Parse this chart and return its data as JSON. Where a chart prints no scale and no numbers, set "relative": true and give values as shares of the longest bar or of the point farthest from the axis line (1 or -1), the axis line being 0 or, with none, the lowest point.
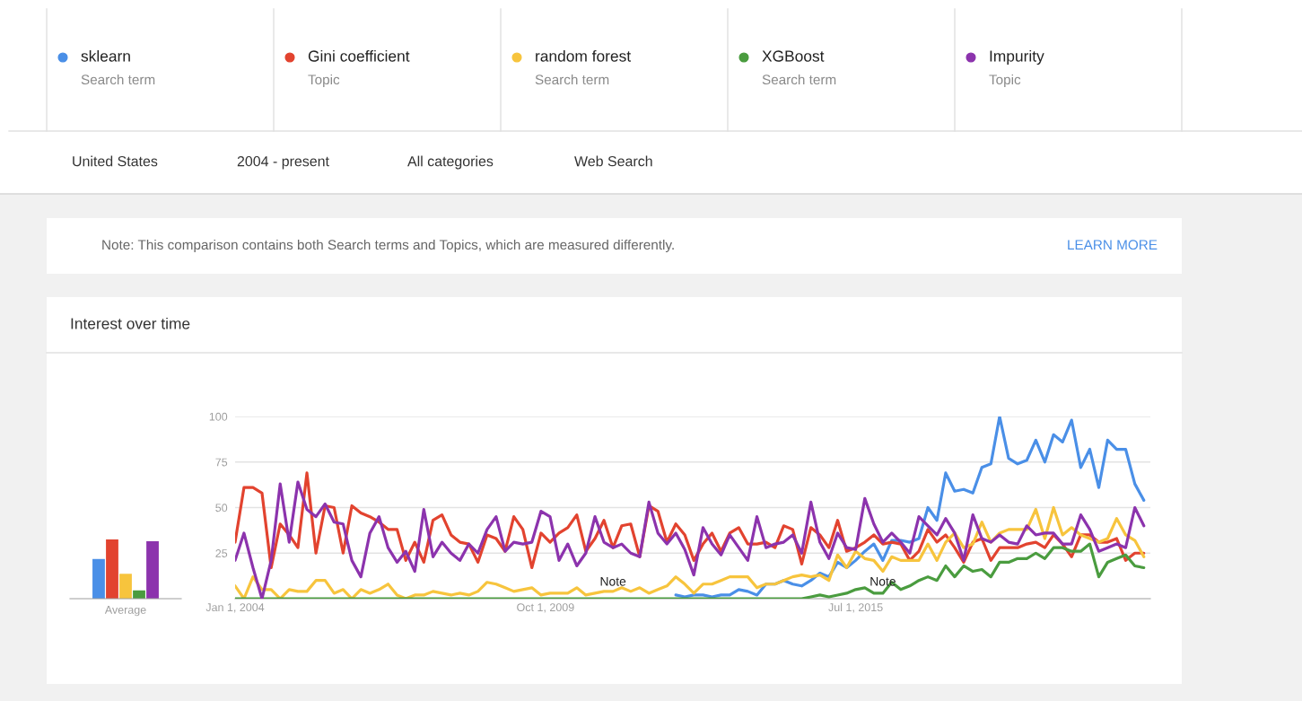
{
  "chart_data": [
    {
      "type": "line",
      "title": "Interest over time",
      "x": [
        "2004-01",
        "2004-03",
        "2004-05",
        "2004-07",
        "2004-09",
        "2004-11",
        "2005-01",
        "2005-03",
        "2005-05",
        "2005-07",
        "2005-09",
        "2005-11",
        "2006-01",
        "2006-03",
        "2006-05",
        "2006-07",
        "2006-09",
        "2006-11",
        "2007-01",
        "2007-03",
        "2007-05",
        "2007-07",
        "2007-09",
        "2007-11",
        "2008-01",
        "2008-03",
        "2008-05",
        "2008-07",
        "2008-09",
        "2008-11",
        "2009-01",
        "2009-03",
        "2009-05",
        "2009-07",
        "2009-09",
        "2009-11",
        "2010-01",
        "2010-03",
        "2010-05",
        "2010-07",
        "2010-09",
        "2010-11",
        "2011-01",
        "2011-03",
        "2011-05",
        "2011-07",
        "2011-09",
        "2011-11",
        "2012-01",
        "2012-03",
        "2012-05",
        "2012-07",
        "2012-09",
        "2012-11",
        "2013-01",
        "2013-03",
        "2013-05",
        "2013-07",
        "2013-09",
        "2013-11",
        "2014-01",
        "2014-03",
        "2014-05",
        "2014-07",
        "2014-09",
        "2014-11",
        "2015-01",
        "2015-03",
        "2015-05",
        "2015-07",
        "2015-09",
        "2015-11",
        "2016-01",
        "2016-03",
        "2016-05",
        "2016-07",
        "2016-09",
        "2016-11",
        "2017-01",
        "2017-03",
        "2017-05",
        "2017-07",
        "2017-09",
        "2017-11",
        "2018-01",
        "2018-03",
        "2018-05",
        "2018-07",
        "2018-09",
        "2018-11",
        "2019-01",
        "2019-03",
        "2019-05",
        "2019-07",
        "2019-09",
        "2019-11",
        "2020-01",
        "2020-03",
        "2020-05",
        "2020-07",
        "2020-09",
        "2020-11"
      ],
      "series": [
        {
          "name": "sklearn",
          "color": "#4a8fe7",
          "values": [
            null,
            null,
            null,
            null,
            null,
            null,
            null,
            null,
            null,
            null,
            null,
            null,
            null,
            null,
            null,
            null,
            null,
            null,
            null,
            null,
            null,
            null,
            null,
            null,
            null,
            null,
            null,
            null,
            null,
            null,
            null,
            null,
            null,
            null,
            null,
            null,
            null,
            null,
            null,
            null,
            null,
            null,
            null,
            null,
            null,
            null,
            null,
            null,
            null,
            2,
            1,
            2,
            2,
            1,
            2,
            2,
            5,
            4,
            2,
            8,
            8,
            10,
            8,
            7,
            10,
            14,
            12,
            20,
            17,
            21,
            26,
            30,
            21,
            32,
            32,
            31,
            33,
            50,
            43,
            69,
            59,
            60,
            58,
            72,
            74,
            100,
            77,
            74,
            76,
            87,
            75,
            90,
            86,
            98,
            72,
            82,
            61,
            87,
            82,
            82,
            63,
            54
          ]
        },
        {
          "name": "Gini coefficient",
          "color": "#e2432f",
          "values": [
            31,
            61,
            61,
            58,
            17,
            41,
            35,
            28,
            69,
            25,
            51,
            50,
            25,
            51,
            47,
            45,
            42,
            38,
            38,
            21,
            31,
            20,
            43,
            46,
            35,
            31,
            30,
            20,
            35,
            33,
            26,
            45,
            38,
            17,
            36,
            31,
            36,
            39,
            46,
            26,
            33,
            43,
            28,
            40,
            41,
            23,
            51,
            48,
            31,
            41,
            35,
            21,
            30,
            36,
            26,
            36,
            39,
            30,
            30,
            31,
            28,
            40,
            38,
            19,
            39,
            35,
            28,
            43,
            26,
            28,
            31,
            35,
            30,
            31,
            30,
            21,
            26,
            38,
            31,
            35,
            28,
            20,
            31,
            33,
            21,
            28,
            28,
            28,
            30,
            31,
            28,
            35,
            30,
            23,
            35,
            35,
            31,
            31,
            33,
            21,
            25,
            25
          ]
        },
        {
          "name": "random forest",
          "color": "#f7c43d",
          "values": [
            7,
            0,
            12,
            5,
            5,
            0,
            5,
            4,
            4,
            10,
            10,
            3,
            5,
            0,
            5,
            3,
            5,
            8,
            2,
            0,
            2,
            2,
            4,
            3,
            2,
            3,
            2,
            4,
            9,
            8,
            6,
            4,
            5,
            6,
            2,
            3,
            3,
            3,
            6,
            2,
            3,
            4,
            4,
            6,
            4,
            6,
            3,
            5,
            7,
            12,
            8,
            3,
            8,
            8,
            10,
            12,
            12,
            12,
            6,
            8,
            8,
            10,
            12,
            13,
            12,
            13,
            10,
            24,
            17,
            26,
            22,
            21,
            15,
            23,
            21,
            21,
            21,
            30,
            21,
            31,
            36,
            28,
            30,
            42,
            31,
            36,
            38,
            38,
            38,
            49,
            33,
            50,
            35,
            39,
            35,
            33,
            31,
            33,
            44,
            35,
            32,
            23
          ]
        },
        {
          "name": "XGBoost",
          "color": "#4a9c3f",
          "values": [
            0,
            0,
            0,
            0,
            0,
            0,
            0,
            0,
            0,
            0,
            0,
            0,
            0,
            0,
            0,
            0,
            0,
            0,
            0,
            0,
            0,
            0,
            0,
            0,
            0,
            0,
            0,
            0,
            0,
            0,
            0,
            0,
            0,
            0,
            0,
            0,
            0,
            0,
            0,
            0,
            0,
            0,
            0,
            0,
            0,
            0,
            0,
            0,
            0,
            0,
            0,
            0,
            0,
            0,
            0,
            0,
            0,
            0,
            0,
            0,
            0,
            0,
            0,
            0,
            1,
            2,
            1,
            2,
            3,
            5,
            6,
            3,
            3,
            9,
            5,
            7,
            10,
            12,
            10,
            18,
            12,
            18,
            15,
            16,
            12,
            20,
            20,
            22,
            22,
            25,
            22,
            28,
            28,
            26,
            26,
            30,
            12,
            20,
            22,
            24,
            18,
            17
          ]
        },
        {
          "name": "Impurity",
          "color": "#8c33ad",
          "values": [
            21,
            36,
            17,
            0,
            21,
            63,
            31,
            64,
            49,
            45,
            52,
            42,
            41,
            21,
            12,
            36,
            45,
            28,
            20,
            26,
            15,
            49,
            23,
            31,
            25,
            21,
            30,
            25,
            38,
            45,
            26,
            31,
            30,
            31,
            48,
            45,
            21,
            30,
            18,
            25,
            45,
            31,
            28,
            30,
            25,
            23,
            53,
            36,
            30,
            36,
            27,
            13,
            39,
            30,
            24,
            35,
            28,
            21,
            45,
            28,
            30,
            31,
            35,
            25,
            53,
            31,
            22,
            36,
            28,
            27,
            55,
            41,
            31,
            36,
            31,
            25,
            45,
            40,
            35,
            44,
            36,
            21,
            46,
            33,
            31,
            35,
            31,
            30,
            40,
            35,
            36,
            36,
            30,
            30,
            46,
            38,
            26,
            28,
            30,
            28,
            50,
            40
          ]
        }
      ],
      "xlim": [
        "2004-01-01",
        "2020-12-15"
      ],
      "xticks": [
        {
          "value": "2004-01-01",
          "label": "Jan 1, 2004"
        },
        {
          "value": "2009-10-01",
          "label": "Oct 1, 2009"
        },
        {
          "value": "2015-07-01",
          "label": "Jul 1, 2015"
        }
      ],
      "ylim": [
        0,
        100
      ],
      "yticks": [
        25,
        50,
        75,
        100
      ],
      "grid": "y",
      "legend": "top",
      "annotations": [
        "Search term",
        "Topic",
        "Search term",
        "Search term",
        "Topic",
        "United States",
        "2004 - present",
        "All categories",
        "Web Search",
        "Note: This comparison contains both Search terms and Topics, which are measured differently.",
        "LEARN MORE",
        {
          "text": "Note",
          "x": "2011-01",
          "y": 0
        },
        {
          "text": "Note",
          "x": "2016-01",
          "y": 0
        }
      ]
    },
    {
      "type": "bar",
      "relative": true,
      "xlabel": "Average",
      "categories": [
        null,
        null,
        null,
        null,
        null
      ],
      "values": [
        0.67,
        1,
        0.42,
        0.14,
        0.97
      ],
      "colors": [
        "#4a8fe7",
        "#e2432f",
        "#f7c43d",
        "#4a9c3f",
        "#8c33ad"
      ]
    }
  ]
}
